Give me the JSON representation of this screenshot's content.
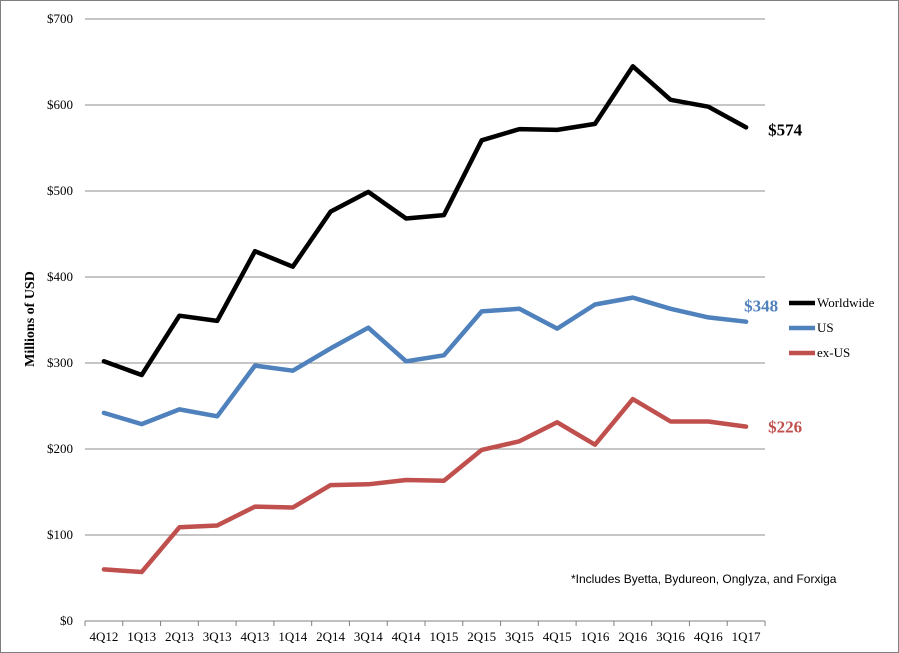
{
  "chart_data": {
    "type": "line",
    "title": "",
    "xlabel": "",
    "ylabel": "Millions of USD",
    "ylim": [
      0,
      700
    ],
    "yticks": [
      0,
      100,
      200,
      300,
      400,
      500,
      600,
      700
    ],
    "ytick_labels": [
      "$0",
      "$100",
      "$200",
      "$300",
      "$400",
      "$500",
      "$600",
      "$700"
    ],
    "grid": "horizontal",
    "legend_position": "right",
    "categories": [
      "4Q12",
      "1Q13",
      "2Q13",
      "3Q13",
      "4Q13",
      "1Q14",
      "2Q14",
      "3Q14",
      "4Q14",
      "1Q15",
      "2Q15",
      "3Q15",
      "4Q15",
      "1Q16",
      "2Q16",
      "3Q16",
      "4Q16",
      "1Q17"
    ],
    "series": [
      {
        "name": "Worldwide",
        "color": "#000000",
        "values": [
          302,
          286,
          355,
          349,
          430,
          412,
          476,
          499,
          468,
          472,
          559,
          572,
          571,
          578,
          645,
          606,
          598,
          574
        ],
        "end_label": "$574"
      },
      {
        "name": "US",
        "color": "#4f81bd",
        "values": [
          242,
          229,
          246,
          238,
          297,
          291,
          317,
          341,
          302,
          309,
          360,
          363,
          340,
          368,
          376,
          363,
          353,
          348
        ],
        "end_label": "$348"
      },
      {
        "name": "ex-US",
        "color": "#c0504d",
        "values": [
          60,
          57,
          109,
          111,
          133,
          132,
          158,
          159,
          164,
          163,
          199,
          209,
          231,
          205,
          258,
          232,
          232,
          226
        ],
        "end_label": "$226"
      }
    ],
    "annotation": "*Includes Byetta, Bydureon, Onglyza, and Forxiga"
  }
}
